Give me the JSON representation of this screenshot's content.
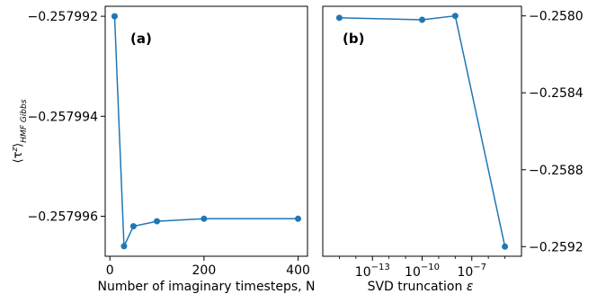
{
  "chart_data": [
    {
      "type": "line",
      "panel_label": "(a)",
      "xlabel": "Number of imaginary timesteps, N",
      "ylabel_main": "⟨τ",
      "ylabel_sup": "z",
      "ylabel_close": "⟩",
      "ylabel_sub": "HMF Gibbs",
      "xlim": [
        -10,
        420
      ],
      "ylim": [
        -0.2579968,
        -0.2579918
      ],
      "xticks": [
        0,
        200,
        400
      ],
      "xtick_labels": [
        "0",
        "200",
        "400"
      ],
      "yticks": [
        -0.257992,
        -0.257994,
        -0.257996
      ],
      "ytick_labels": [
        "−0.257992",
        "−0.257994",
        "−0.257996"
      ],
      "color": "#1f77b4",
      "x": [
        10,
        30,
        50,
        100,
        200,
        400
      ],
      "y": [
        -0.257992,
        -0.2579966,
        -0.2579962,
        -0.2579961,
        -0.25799605,
        -0.25799605
      ]
    },
    {
      "type": "line",
      "panel_label": "(b)",
      "xlabel": "SVD truncation ε",
      "xscale": "log",
      "xlim_exp": [
        -16,
        -4
      ],
      "ylim": [
        -0.25925,
        -0.25795
      ],
      "xticks_exp": [
        -13,
        -10,
        -7
      ],
      "xtick_labels": [
        [
          "10",
          "−13"
        ],
        [
          "10",
          "−10"
        ],
        [
          "10",
          "−7"
        ]
      ],
      "yticks": [
        -0.258,
        -0.2584,
        -0.2588,
        -0.2592
      ],
      "ytick_labels": [
        "−0.2580",
        "−0.2584",
        "−0.2588",
        "−0.2592"
      ],
      "yaxis_side": "right",
      "color": "#1f77b4",
      "x_exp": [
        -15,
        -10,
        -8,
        -5
      ],
      "y": [
        -0.25801,
        -0.25802,
        -0.258,
        -0.2592
      ]
    }
  ]
}
